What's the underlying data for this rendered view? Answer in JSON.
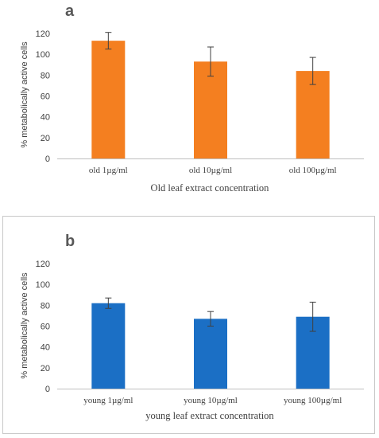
{
  "chart_data": [
    {
      "panel": "a",
      "type": "bar",
      "categories": [
        "old 1µg/ml",
        "old 10µg/ml",
        "old 100µg/ml"
      ],
      "values": [
        113,
        93,
        84
      ],
      "errors": [
        8,
        14,
        13
      ],
      "xlabel": "Old leaf extract concentration",
      "ylabel": "% metabolically active cells",
      "ylim": [
        0,
        120
      ],
      "yticks": [
        0,
        20,
        40,
        60,
        80,
        100,
        120
      ],
      "bar_color": "#f47f20",
      "grid": false
    },
    {
      "panel": "b",
      "type": "bar",
      "categories": [
        "young 1µg/ml",
        "young 10µg/ml",
        "young 100µg/ml"
      ],
      "values": [
        82,
        67,
        69
      ],
      "errors": [
        5,
        7,
        14
      ],
      "xlabel": "young leaf extract concentration",
      "ylabel": "% metabolically active cells",
      "ylim": [
        0,
        120
      ],
      "yticks": [
        0,
        20,
        40,
        60,
        80,
        100,
        120
      ],
      "bar_color": "#1b6fc5",
      "grid": false
    }
  ]
}
